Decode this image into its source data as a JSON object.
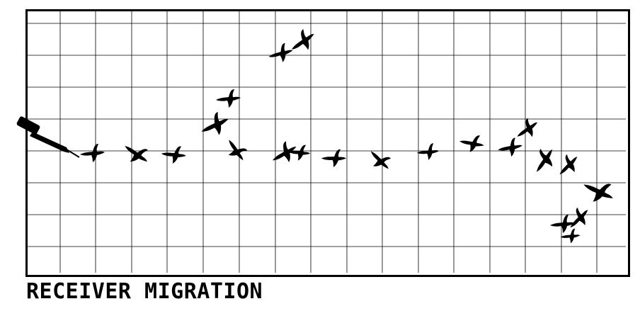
{
  "caption": "RECEIVER MIGRATION",
  "colors": {
    "ink": "#000000",
    "paper": "#ffffff",
    "grid": "#000000"
  },
  "icons": [
    "telephone-receiver-icon",
    "bird-icon"
  ]
}
